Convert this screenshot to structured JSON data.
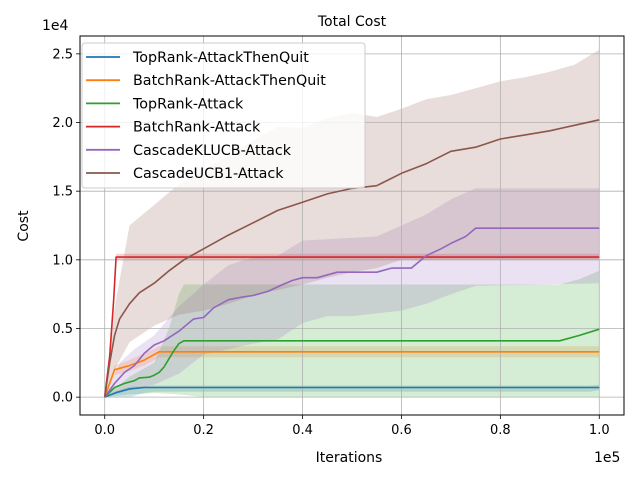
{
  "chart_data": {
    "type": "line",
    "title": "Total Cost",
    "xlabel": "Iterations",
    "ylabel": "Cost",
    "x_multiplier_label": "1e5",
    "y_multiplier_label": "1e4",
    "x_multiplier": 100000,
    "y_multiplier": 10000,
    "xlim": [
      -5000,
      105000
    ],
    "ylim": [
      -1300,
      26300
    ],
    "x_ticks": [
      0,
      20000,
      40000,
      60000,
      80000,
      100000
    ],
    "x_tick_labels": [
      "0.0",
      "0.2",
      "0.4",
      "0.6",
      "0.8",
      "1.0"
    ],
    "y_ticks": [
      0,
      5000,
      10000,
      15000,
      20000,
      25000
    ],
    "y_tick_labels": [
      "0.0",
      "0.5",
      "1.0",
      "1.5",
      "2.0",
      "2.5"
    ],
    "grid": true,
    "legend_position": "top-left",
    "series": [
      {
        "name": "TopRank-AttackThenQuit",
        "color": "#1f77b4",
        "points": [
          [
            0,
            0
          ],
          [
            1000,
            150
          ],
          [
            2500,
            350
          ],
          [
            5000,
            600
          ],
          [
            8000,
            700
          ],
          [
            10000,
            700
          ],
          [
            100000,
            700
          ]
        ],
        "band_lower": [
          [
            0,
            0
          ],
          [
            5000,
            0
          ],
          [
            8000,
            300
          ],
          [
            10000,
            400
          ],
          [
            98000,
            400
          ],
          [
            100000,
            500
          ]
        ],
        "band_upper": [
          [
            0,
            0
          ],
          [
            2000,
            400
          ],
          [
            5000,
            750
          ],
          [
            10000,
            850
          ],
          [
            98000,
            850
          ],
          [
            100000,
            900
          ]
        ]
      },
      {
        "name": "BatchRank-AttackThenQuit",
        "color": "#ff7f0e",
        "points": [
          [
            0,
            0
          ],
          [
            2000,
            2000
          ],
          [
            5000,
            2300
          ],
          [
            8000,
            2700
          ],
          [
            10000,
            3100
          ],
          [
            11000,
            3300
          ],
          [
            100000,
            3300
          ]
        ],
        "band_lower": [
          [
            0,
            0
          ],
          [
            2000,
            1600
          ],
          [
            5000,
            1900
          ],
          [
            8000,
            2300
          ],
          [
            10000,
            2700
          ],
          [
            11000,
            2900
          ],
          [
            100000,
            2900
          ]
        ],
        "band_upper": [
          [
            0,
            0
          ],
          [
            2000,
            2300
          ],
          [
            5000,
            2700
          ],
          [
            8000,
            3200
          ],
          [
            10000,
            3500
          ],
          [
            11000,
            3700
          ],
          [
            100000,
            3700
          ]
        ]
      },
      {
        "name": "TopRank-Attack",
        "color": "#2ca02c",
        "points": [
          [
            0,
            0
          ],
          [
            2000,
            700
          ],
          [
            4000,
            1000
          ],
          [
            6000,
            1200
          ],
          [
            7000,
            1400
          ],
          [
            9000,
            1450
          ],
          [
            10000,
            1600
          ],
          [
            11000,
            1800
          ],
          [
            12000,
            2200
          ],
          [
            13000,
            2800
          ],
          [
            14000,
            3400
          ],
          [
            15000,
            3900
          ],
          [
            16000,
            4100
          ],
          [
            92000,
            4100
          ],
          [
            96000,
            4500
          ],
          [
            100000,
            4950
          ]
        ],
        "band_lower": [
          [
            0,
            0
          ],
          [
            5000,
            200
          ],
          [
            10000,
            300
          ],
          [
            15000,
            200
          ],
          [
            20000,
            0
          ],
          [
            100000,
            0
          ]
        ],
        "band_upper": [
          [
            0,
            0
          ],
          [
            5000,
            1500
          ],
          [
            10000,
            2500
          ],
          [
            13000,
            5000
          ],
          [
            15000,
            7500
          ],
          [
            16000,
            8200
          ],
          [
            92000,
            8200
          ],
          [
            96000,
            8600
          ],
          [
            100000,
            9200
          ]
        ]
      },
      {
        "name": "BatchRank-Attack",
        "color": "#d62728",
        "points": [
          [
            0,
            0
          ],
          [
            1000,
            3000
          ],
          [
            1800,
            7000
          ],
          [
            2300,
            10200
          ],
          [
            100000,
            10200
          ]
        ],
        "band_lower": [
          [
            0,
            0
          ],
          [
            1000,
            2800
          ],
          [
            1800,
            6800
          ],
          [
            2300,
            9950
          ],
          [
            100000,
            9950
          ]
        ],
        "band_upper": [
          [
            0,
            0
          ],
          [
            1000,
            3200
          ],
          [
            1800,
            7300
          ],
          [
            2300,
            10450
          ],
          [
            100000,
            10450
          ]
        ]
      },
      {
        "name": "CascadeKLUCB-Attack",
        "color": "#9467bd",
        "points": [
          [
            0,
            0
          ],
          [
            2000,
            1000
          ],
          [
            4000,
            1800
          ],
          [
            6000,
            2300
          ],
          [
            8000,
            3200
          ],
          [
            10000,
            3800
          ],
          [
            12000,
            4100
          ],
          [
            15000,
            4800
          ],
          [
            18000,
            5700
          ],
          [
            20000,
            5800
          ],
          [
            22000,
            6500
          ],
          [
            25000,
            7100
          ],
          [
            28000,
            7300
          ],
          [
            30000,
            7400
          ],
          [
            33000,
            7700
          ],
          [
            36000,
            8200
          ],
          [
            38000,
            8500
          ],
          [
            40000,
            8700
          ],
          [
            43000,
            8700
          ],
          [
            47000,
            9100
          ],
          [
            50000,
            9100
          ],
          [
            55000,
            9100
          ],
          [
            58000,
            9400
          ],
          [
            62000,
            9400
          ],
          [
            65000,
            10300
          ],
          [
            68000,
            10800
          ],
          [
            70000,
            11200
          ],
          [
            73000,
            11700
          ],
          [
            75000,
            12300
          ],
          [
            100000,
            12300
          ]
        ],
        "band_lower": [
          [
            0,
            0
          ],
          [
            5000,
            500
          ],
          [
            10000,
            900
          ],
          [
            15000,
            1700
          ],
          [
            20000,
            3100
          ],
          [
            25000,
            3500
          ],
          [
            30000,
            3900
          ],
          [
            35000,
            4200
          ],
          [
            40000,
            5400
          ],
          [
            45000,
            5900
          ],
          [
            50000,
            5900
          ],
          [
            55000,
            6100
          ],
          [
            60000,
            6300
          ],
          [
            65000,
            6800
          ],
          [
            70000,
            7500
          ],
          [
            75000,
            8100
          ],
          [
            100000,
            8300
          ]
        ],
        "band_upper": [
          [
            0,
            0
          ],
          [
            3000,
            2500
          ],
          [
            6000,
            3500
          ],
          [
            10000,
            4500
          ],
          [
            15000,
            6600
          ],
          [
            20000,
            8200
          ],
          [
            25000,
            9600
          ],
          [
            30000,
            10200
          ],
          [
            35000,
            10300
          ],
          [
            40000,
            11400
          ],
          [
            45000,
            11500
          ],
          [
            50000,
            11600
          ],
          [
            55000,
            11700
          ],
          [
            60000,
            12500
          ],
          [
            65000,
            13300
          ],
          [
            70000,
            14400
          ],
          [
            75000,
            15200
          ],
          [
            100000,
            15200
          ]
        ]
      },
      {
        "name": "CascadeUCB1-Attack",
        "color": "#8c564b",
        "points": [
          [
            0,
            0
          ],
          [
            1000,
            2500
          ],
          [
            2000,
            4500
          ],
          [
            3000,
            5700
          ],
          [
            5000,
            6800
          ],
          [
            7000,
            7600
          ],
          [
            10000,
            8300
          ],
          [
            13000,
            9200
          ],
          [
            16000,
            10000
          ],
          [
            20000,
            10800
          ],
          [
            25000,
            11800
          ],
          [
            30000,
            12700
          ],
          [
            35000,
            13600
          ],
          [
            40000,
            14200
          ],
          [
            45000,
            14800
          ],
          [
            50000,
            15200
          ],
          [
            55000,
            15400
          ],
          [
            60000,
            16300
          ],
          [
            65000,
            17000
          ],
          [
            70000,
            17900
          ],
          [
            75000,
            18200
          ],
          [
            80000,
            18800
          ],
          [
            85000,
            19100
          ],
          [
            90000,
            19400
          ],
          [
            95000,
            19800
          ],
          [
            100000,
            20200
          ]
        ],
        "band_lower": [
          [
            0,
            0
          ],
          [
            2000,
            2000
          ],
          [
            5000,
            4000
          ],
          [
            10000,
            5200
          ],
          [
            15000,
            6000
          ],
          [
            20000,
            6300
          ],
          [
            25000,
            6800
          ],
          [
            30000,
            7400
          ],
          [
            35000,
            7800
          ],
          [
            40000,
            8200
          ],
          [
            45000,
            8700
          ],
          [
            50000,
            9100
          ],
          [
            55000,
            9400
          ],
          [
            60000,
            10000
          ],
          [
            70000,
            10000
          ],
          [
            80000,
            10000
          ],
          [
            90000,
            10000
          ],
          [
            100000,
            10000
          ]
        ],
        "band_upper": [
          [
            0,
            0
          ],
          [
            2000,
            6500
          ],
          [
            5000,
            12500
          ],
          [
            10000,
            14000
          ],
          [
            15000,
            15500
          ],
          [
            20000,
            16500
          ],
          [
            25000,
            17600
          ],
          [
            30000,
            18700
          ],
          [
            35000,
            19700
          ],
          [
            40000,
            19600
          ],
          [
            45000,
            20300
          ],
          [
            50000,
            20700
          ],
          [
            55000,
            20400
          ],
          [
            60000,
            21000
          ],
          [
            65000,
            21700
          ],
          [
            70000,
            22000
          ],
          [
            75000,
            22500
          ],
          [
            80000,
            23000
          ],
          [
            85000,
            23300
          ],
          [
            90000,
            23700
          ],
          [
            95000,
            24200
          ],
          [
            100000,
            25300
          ]
        ]
      }
    ]
  }
}
